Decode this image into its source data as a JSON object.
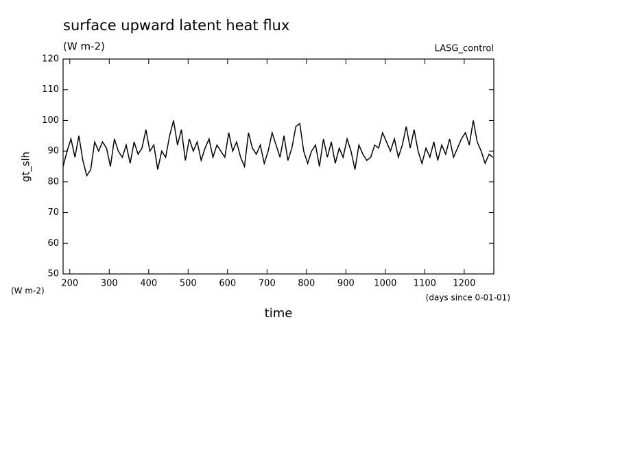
{
  "chart_data": {
    "type": "line",
    "title": "surface upward latent heat flux",
    "subtitle": "(W m-2)",
    "annotation": "LASG_control",
    "ylabel": "gt_slh",
    "y_unit": "(W m-2)",
    "xlabel": "time",
    "x_unit": "(days since 0-01-01)",
    "xlim": [
      183,
      1275
    ],
    "ylim": [
      50,
      120
    ],
    "xticks": [
      200,
      300,
      400,
      500,
      600,
      700,
      800,
      900,
      1000,
      1100,
      1200
    ],
    "yticks": [
      50,
      60,
      70,
      80,
      90,
      100,
      110,
      120
    ],
    "series": [
      {
        "color": "#000000",
        "x": [
          183,
          193,
          203,
          213,
          223,
          233,
          243,
          253,
          263,
          273,
          283,
          293,
          303,
          313,
          323,
          333,
          343,
          353,
          363,
          373,
          383,
          393,
          403,
          413,
          423,
          433,
          443,
          453,
          463,
          473,
          483,
          493,
          503,
          513,
          523,
          533,
          543,
          553,
          563,
          573,
          583,
          593,
          603,
          613,
          623,
          633,
          643,
          653,
          663,
          673,
          683,
          693,
          703,
          713,
          723,
          733,
          743,
          753,
          763,
          773,
          783,
          793,
          803,
          813,
          823,
          833,
          843,
          853,
          863,
          873,
          883,
          893,
          903,
          913,
          923,
          933,
          943,
          953,
          963,
          973,
          983,
          993,
          1003,
          1013,
          1023,
          1033,
          1043,
          1053,
          1063,
          1073,
          1083,
          1093,
          1103,
          1113,
          1123,
          1133,
          1143,
          1153,
          1163,
          1173,
          1183,
          1193,
          1203,
          1213,
          1223,
          1233,
          1243,
          1253,
          1263,
          1273
        ],
        "values": [
          85,
          90,
          94,
          88,
          95,
          87,
          82,
          84,
          93,
          90,
          93,
          91,
          85,
          94,
          90,
          88,
          92,
          86,
          93,
          89,
          91,
          97,
          90,
          92,
          84,
          90,
          88,
          95,
          100,
          92,
          97,
          87,
          94,
          90,
          93,
          87,
          91,
          94,
          88,
          92,
          90,
          88,
          96,
          90,
          93,
          88,
          85,
          96,
          91,
          89,
          92,
          86,
          90,
          96,
          92,
          88,
          95,
          87,
          91,
          98,
          99,
          90,
          86,
          90,
          92,
          85,
          94,
          88,
          93,
          86,
          91,
          88,
          94,
          90,
          84,
          92,
          89,
          87,
          88,
          92,
          91,
          96,
          93,
          90,
          94,
          88,
          92,
          98,
          91,
          97,
          90,
          86,
          91,
          88,
          93,
          87,
          92,
          89,
          94,
          88,
          91,
          94,
          96,
          92,
          100,
          93,
          90,
          86,
          89,
          88
        ]
      }
    ]
  }
}
